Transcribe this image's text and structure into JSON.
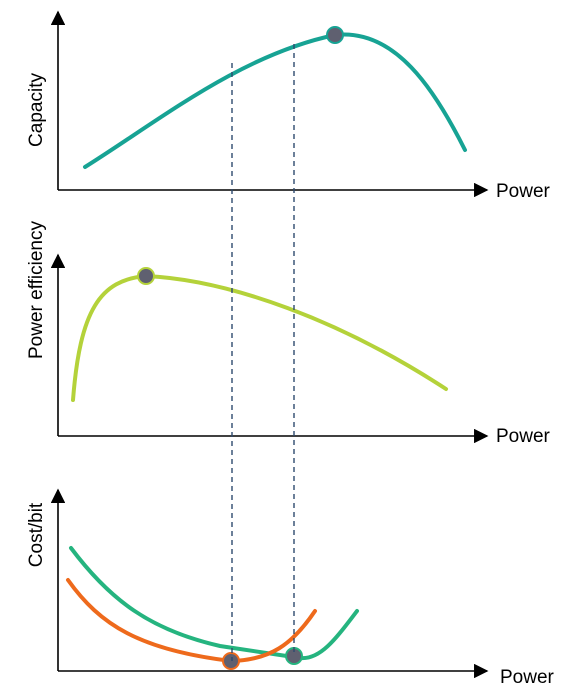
{
  "colors": {
    "capacity_curve": "#17a394",
    "efficiency_curve": "#b4d23a",
    "cost_curve_green": "#25b47f",
    "cost_curve_orange": "#ee6a1c",
    "marker_fill": "#5f6070",
    "guide_line": "#2e4a6e",
    "axis": "#000000"
  },
  "panels": {
    "capacity": {
      "y_label": "Capacity",
      "x_label": "Power"
    },
    "efficiency": {
      "y_label": "Power efficiency",
      "x_label": "Power"
    },
    "cost": {
      "y_label": "Cost/bit",
      "x_label": "Power"
    }
  }
}
